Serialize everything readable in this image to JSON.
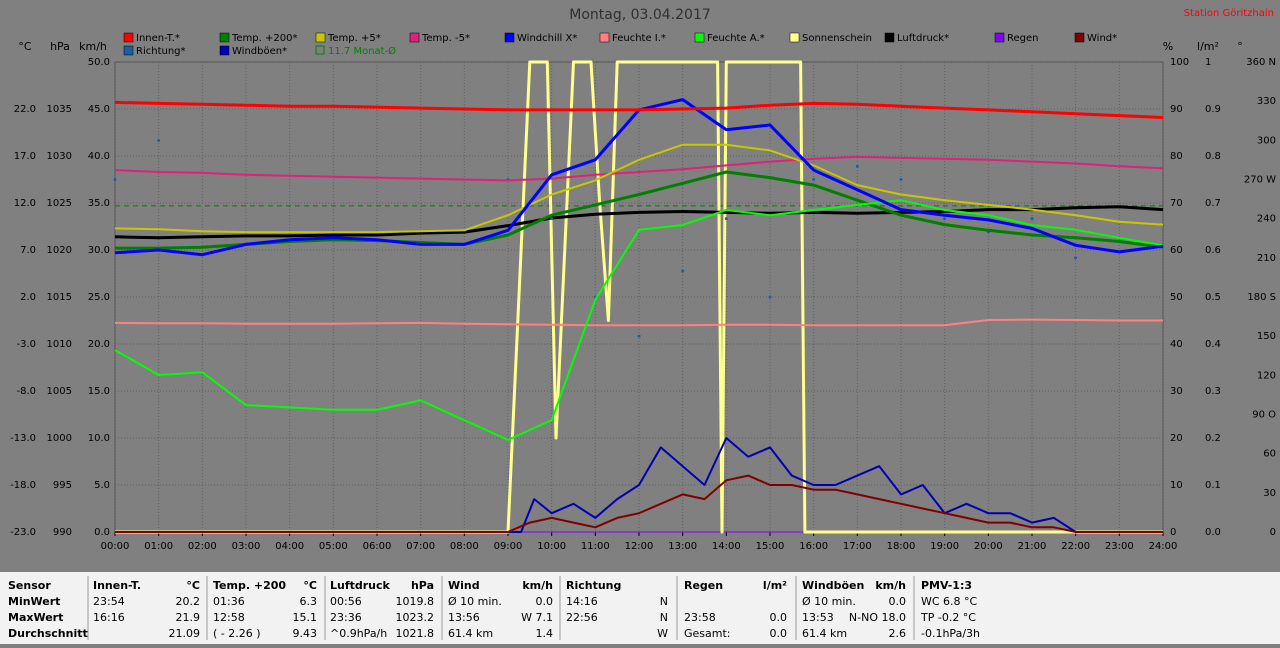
{
  "chart_data": {
    "type": "line",
    "title": "Montag, 03.04.2017",
    "station": "Station Göritzhain",
    "axis_labels": {
      "y": "°C",
      "y2": "hPa",
      "y3": "km/h",
      "y4": "%",
      "y5": "l/m²",
      "y6": "°"
    },
    "x": [
      0,
      1,
      2,
      3,
      4,
      5,
      6,
      7,
      8,
      9,
      10,
      11,
      12,
      13,
      14,
      15,
      16,
      17,
      18,
      19,
      20,
      21,
      22,
      23,
      24
    ],
    "xlim": [
      0,
      24
    ],
    "xticks": [
      {
        "value": 0,
        "label": "00:00"
      },
      {
        "value": 1,
        "label": "01:00"
      },
      {
        "value": 2,
        "label": "02:00"
      },
      {
        "value": 3,
        "label": "03:00"
      },
      {
        "value": 4,
        "label": "04:00"
      },
      {
        "value": 5,
        "label": "05:00"
      },
      {
        "value": 6,
        "label": "06:00"
      },
      {
        "value": 7,
        "label": "07:00"
      },
      {
        "value": 8,
        "label": "08:00"
      },
      {
        "value": 9,
        "label": "09:00"
      },
      {
        "value": 10,
        "label": "10:00"
      },
      {
        "value": 11,
        "label": "11:00"
      },
      {
        "value": 12,
        "label": "12:00"
      },
      {
        "value": 13,
        "label": "13:00"
      },
      {
        "value": 14,
        "label": "14:00"
      },
      {
        "value": 15,
        "label": "15:00"
      },
      {
        "value": 16,
        "label": "16:00"
      },
      {
        "value": 17,
        "label": "17:00"
      },
      {
        "value": 18,
        "label": "18:00"
      },
      {
        "value": 19,
        "label": "19:00"
      },
      {
        "value": 20,
        "label": "20:00"
      },
      {
        "value": 21,
        "label": "21:00"
      },
      {
        "value": 22,
        "label": "22:00"
      },
      {
        "value": 23,
        "label": "23:00"
      },
      {
        "value": 24,
        "label": "24:00"
      }
    ],
    "ylim": [
      -23,
      27
    ],
    "yticks": [
      {
        "value": -23,
        "label": "-23.0"
      },
      {
        "value": -18,
        "label": "-18.0"
      },
      {
        "value": -13,
        "label": "-13.0"
      },
      {
        "value": -8,
        "label": "-8.0"
      },
      {
        "value": -3,
        "label": "-3.0"
      },
      {
        "value": 2,
        "label": "2.0"
      },
      {
        "value": 7,
        "label": "7.0"
      },
      {
        "value": 12,
        "label": "12.0"
      },
      {
        "value": 17,
        "label": "17.0"
      },
      {
        "value": 22,
        "label": "22.0"
      }
    ],
    "y2lim": [
      990,
      1040
    ],
    "y2ticks": [
      990,
      995,
      1000,
      1005,
      1010,
      1015,
      1020,
      1025,
      1030,
      1035
    ],
    "y3lim": [
      0,
      50
    ],
    "y3ticks": [
      {
        "value": 0,
        "label": "0.0"
      },
      {
        "value": 5,
        "label": "5.0"
      },
      {
        "value": 10,
        "label": "10.0"
      },
      {
        "value": 15,
        "label": "15.0"
      },
      {
        "value": 20,
        "label": "20.0"
      },
      {
        "value": 25,
        "label": "25.0"
      },
      {
        "value": 30,
        "label": "30.0"
      },
      {
        "value": 35,
        "label": "35.0"
      },
      {
        "value": 40,
        "label": "40.0"
      },
      {
        "value": 45,
        "label": "45.0"
      },
      {
        "value": 50,
        "label": "50.0"
      }
    ],
    "y4lim": [
      0,
      100
    ],
    "y4ticks": [
      0,
      10,
      20,
      30,
      40,
      50,
      60,
      70,
      80,
      90,
      100
    ],
    "y5lim": [
      0,
      1
    ],
    "y5ticks": [
      {
        "value": 0,
        "label": "0.0"
      },
      0.1,
      0.2,
      0.3,
      0.4,
      0.5,
      0.6,
      0.7,
      0.8,
      0.9,
      1
    ],
    "y6lim": [
      0,
      360
    ],
    "y6ticks": [
      0,
      30,
      60,
      {
        "value": 90,
        "label": "90 O"
      },
      120,
      150,
      {
        "value": 180,
        "label": "180 S"
      },
      210,
      240,
      {
        "value": 270,
        "label": "270 W"
      },
      300,
      330,
      {
        "value": 360,
        "label": "360 N"
      }
    ],
    "grid": true,
    "series": [
      {
        "name": "Innen-T.*",
        "color": "#ff0000",
        "axis": "y",
        "width": 3,
        "values": [
          22.7,
          22.6,
          22.5,
          22.4,
          22.3,
          22.3,
          22.2,
          22.1,
          22.0,
          21.9,
          21.9,
          21.9,
          21.9,
          22.0,
          22.1,
          22.4,
          22.6,
          22.5,
          22.3,
          22.1,
          21.9,
          21.7,
          21.5,
          21.3,
          21.1
        ]
      },
      {
        "name": "Temp. +200*",
        "color": "#008000",
        "axis": "y",
        "width": 3,
        "values": [
          7.2,
          7.2,
          7.3,
          7.6,
          7.9,
          8.1,
          8.0,
          7.8,
          7.6,
          8.6,
          10.7,
          11.8,
          12.9,
          14.1,
          15.3,
          14.7,
          13.9,
          12.3,
          10.7,
          9.7,
          9.1,
          8.6,
          8.3,
          7.9,
          7.3
        ]
      },
      {
        "name": "Temp. +5*",
        "color": "#c8c800",
        "axis": "y",
        "width": 2,
        "values": [
          9.3,
          9.2,
          9.0,
          8.9,
          8.9,
          8.9,
          8.9,
          9.0,
          9.1,
          10.7,
          12.9,
          14.4,
          16.6,
          18.2,
          18.2,
          17.6,
          16.0,
          13.9,
          12.9,
          12.3,
          11.8,
          11.3,
          10.7,
          10.0,
          9.7
        ]
      },
      {
        "name": "Temp. -5*",
        "color": "#e0207a",
        "axis": "y",
        "width": 2,
        "values": [
          15.5,
          15.3,
          15.2,
          15.0,
          14.9,
          14.8,
          14.7,
          14.6,
          14.5,
          14.4,
          14.6,
          15.0,
          15.3,
          15.6,
          16.0,
          16.4,
          16.7,
          16.9,
          16.8,
          16.7,
          16.6,
          16.4,
          16.2,
          15.9,
          15.7
        ]
      },
      {
        "name": "Windchill X*",
        "color": "#0000ff",
        "axis": "y",
        "width": 3,
        "values": [
          6.7,
          7.0,
          6.5,
          7.6,
          8.1,
          8.3,
          8.1,
          7.6,
          7.6,
          9.1,
          15.0,
          16.6,
          21.9,
          23.0,
          19.8,
          20.3,
          15.5,
          13.4,
          11.3,
          10.7,
          10.2,
          9.3,
          7.5,
          6.8,
          7.4
        ]
      },
      {
        "name": "Feuchte I.*",
        "color": "#ff8080",
        "axis": "y4",
        "width": 2,
        "values": [
          44.5,
          44.4,
          44.4,
          44.3,
          44.3,
          44.3,
          44.4,
          44.5,
          44.3,
          44.2,
          44.1,
          44.0,
          44.0,
          44.0,
          44.1,
          44.1,
          44.0,
          44.0,
          44.0,
          44.0,
          45.1,
          45.2,
          45.1,
          45.0,
          45.0
        ]
      },
      {
        "name": "Feuchte A.*",
        "color": "#00ff00",
        "axis": "y4",
        "width": 2,
        "values": [
          38.7,
          33.4,
          34.0,
          27.0,
          26.5,
          26.0,
          26.0,
          28.0,
          23.8,
          19.6,
          23.8,
          49.4,
          64.3,
          65.3,
          68.5,
          67.4,
          68.5,
          69.6,
          70.6,
          68.5,
          67.4,
          65.3,
          64.3,
          62.6,
          61.0
        ]
      },
      {
        "name": "Sonnenschein",
        "color": "#ffff90",
        "axis": "y4",
        "width": 3,
        "x": [
          0,
          9,
          9.3,
          9.5,
          9.9,
          10.1,
          10.5,
          10.9,
          11.1,
          11.3,
          11.5,
          13.8,
          13.9,
          14,
          15.7,
          15.8,
          15.9,
          24
        ],
        "values": [
          0,
          0,
          60,
          100,
          100,
          20,
          100,
          100,
          70,
          45,
          100,
          100,
          0,
          100,
          100,
          0,
          0,
          0
        ]
      },
      {
        "name": "Luftdruck*",
        "color": "#000000",
        "axis": "y2",
        "width": 3,
        "values": [
          1021.4,
          1021.3,
          1021.4,
          1021.5,
          1021.5,
          1021.6,
          1021.6,
          1021.8,
          1021.9,
          1022.6,
          1023.4,
          1023.8,
          1024.0,
          1024.1,
          1024.0,
          1023.9,
          1024.0,
          1023.9,
          1024.0,
          1024.1,
          1024.3,
          1024.3,
          1024.5,
          1024.6,
          1024.3
        ]
      },
      {
        "name": "Regen",
        "color": "#8000ff",
        "axis": "y5",
        "width": 1,
        "values": [
          0,
          0,
          0,
          0,
          0,
          0,
          0,
          0,
          0,
          0,
          0,
          0,
          0,
          0,
          0,
          0,
          0,
          0,
          0,
          0,
          0,
          0,
          0,
          0,
          0
        ]
      },
      {
        "name": "Wind*",
        "color": "#800000",
        "axis": "y3",
        "width": 2,
        "x": [
          0,
          9,
          9.5,
          10,
          10.5,
          11,
          11.5,
          12,
          12.5,
          13,
          13.5,
          14,
          14.5,
          15,
          15.5,
          16,
          16.5,
          17,
          17.5,
          18,
          18.5,
          19,
          19.5,
          20,
          20.5,
          21,
          21.5,
          22,
          24
        ],
        "values": [
          0,
          0,
          1,
          1.5,
          1,
          0.5,
          1.5,
          2,
          3,
          4,
          3.5,
          5.5,
          6,
          5,
          5,
          4.5,
          4.5,
          4,
          3.5,
          3,
          2.5,
          2,
          1.5,
          1,
          1,
          0.5,
          0.5,
          0,
          0
        ]
      },
      {
        "name": "Richtung*",
        "color": "#1f5fa0",
        "axis": "y6",
        "scatter": true,
        "values": [
          270,
          300,
          null,
          null,
          null,
          null,
          null,
          null,
          null,
          270,
          240,
          180,
          150,
          200,
          240,
          180,
          270,
          280,
          270,
          240,
          230,
          240,
          210,
          null,
          null
        ]
      },
      {
        "name": "Windböen*",
        "color": "#0000b0",
        "axis": "y3",
        "width": 2,
        "x": [
          0,
          9,
          9.3,
          9.6,
          10,
          10.5,
          11,
          11.5,
          12,
          12.5,
          13,
          13.5,
          14,
          14.5,
          15,
          15.5,
          16,
          16.5,
          17,
          17.5,
          18,
          18.5,
          19,
          19.5,
          20,
          20.5,
          21,
          21.5,
          22,
          24
        ],
        "values": [
          0,
          0,
          0,
          3.5,
          2,
          3,
          1.5,
          3.5,
          5,
          9,
          7,
          5,
          10,
          8,
          9,
          6,
          5,
          5,
          6,
          7,
          4,
          5,
          2,
          3,
          2,
          2,
          1,
          1.5,
          0,
          0
        ]
      }
    ],
    "reference_lines": [
      {
        "name": "11.7 Monat-Ø",
        "value": 11.7,
        "axis": "y",
        "color": "#008000"
      }
    ]
  },
  "table": {
    "rows": [
      [
        "Sensor",
        "Innen-T.",
        "°C",
        "Temp. +200",
        "°C",
        "Luftdruck",
        "hPa",
        "Wind",
        "km/h",
        "Richtung",
        null,
        "Regen",
        "l/m²",
        "Windböen",
        "km/h",
        "PMV-1:3"
      ],
      [
        "MinWert",
        "23:54",
        "20.2",
        "01:36",
        "6.3",
        "00:56",
        "1019.8",
        "Ø 10 min.",
        "0.0",
        "14:16",
        "N",
        null,
        null,
        "Ø 10 min.",
        "0.0",
        "WC 6.8 °C"
      ],
      [
        "MaxWert",
        "16:16",
        "21.9",
        "12:58",
        "15.1",
        "23:36",
        "1023.2",
        "13:56",
        "W 7.1",
        "22:56",
        "N",
        "23:58",
        "0.0",
        "13:53",
        "N-NO 18.0",
        "TP -0.2 °C"
      ],
      [
        "Durchschnitt",
        null,
        "21.09",
        "( - 2.26 )",
        "9.43",
        "^0.9hPa/h",
        "1021.8",
        "61.4 km",
        "1.4",
        null,
        "W",
        "Gesamt:",
        "0.0",
        "61.4 km",
        "2.6",
        "-0.1hPa/3h"
      ]
    ]
  }
}
